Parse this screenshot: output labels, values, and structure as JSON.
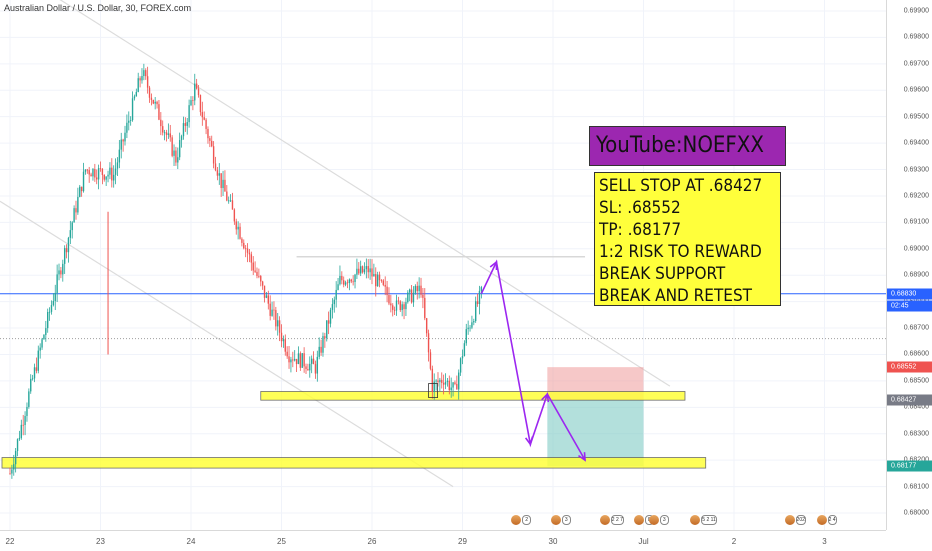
{
  "header": {
    "title": "Australian Dollar / U.S. Dollar, 30, FOREX.com"
  },
  "price_axis": {
    "labels": [
      "0.69900",
      "0.69800",
      "0.69700",
      "0.69600",
      "0.69500",
      "0.69400",
      "0.69300",
      "0.69200",
      "0.69100",
      "0.69000",
      "0.68900",
      "0.68800",
      "0.68700",
      "0.68600",
      "0.68500",
      "0.68400",
      "0.68300",
      "0.68200",
      "0.68100",
      "0.68000"
    ],
    "tags": [
      {
        "text": "0.68830",
        "sub": "02:45",
        "color": "#2962ff",
        "price": 0.6883
      },
      {
        "text": "0.68552",
        "color": "#ef5350",
        "price": 0.68552
      },
      {
        "text": "0.68427",
        "color": "#787b86",
        "price": 0.68427
      },
      {
        "text": "0.68177",
        "color": "#26a69a",
        "price": 0.68177
      }
    ]
  },
  "time_axis": {
    "labels": [
      {
        "text": "22",
        "t": 0
      },
      {
        "text": "23",
        "t": 48
      },
      {
        "text": "24",
        "t": 96
      },
      {
        "text": "25",
        "t": 144
      },
      {
        "text": "26",
        "t": 192
      },
      {
        "text": "29",
        "t": 240
      },
      {
        "text": "30",
        "t": 288
      },
      {
        "text": "Jul",
        "t": 336
      },
      {
        "text": "2",
        "t": 384
      },
      {
        "text": "3",
        "t": 432
      }
    ]
  },
  "annotations": {
    "youtube": "YouTube:NOEFXX",
    "signal_lines": [
      "SELL STOP AT .68427",
      "SL: .68552",
      "TP: .68177",
      "1:2 RISK TO REWARD",
      "BREAK SUPPORT",
      "BREAK AND RETEST"
    ]
  },
  "events": [
    {
      "t": 269,
      "count": "2"
    },
    {
      "t": 290,
      "count": "3"
    },
    {
      "t": 316,
      "count": "2 2 7"
    },
    {
      "t": 334,
      "count": "8"
    },
    {
      "t": 342,
      "count": "3"
    },
    {
      "t": 364,
      "count": "5 2 11"
    },
    {
      "t": 414,
      "count": "202"
    },
    {
      "t": 431,
      "count": "2 4"
    }
  ],
  "colors": {
    "up": "#26a69a",
    "down": "#ef5350",
    "zone": "#ffff3b",
    "arrow": "#9c27f0",
    "purple_box": "#9c27b0"
  },
  "chart_data": {
    "type": "candlestick",
    "timeframe": "30",
    "ylim": [
      0.6795,
      0.6995
    ],
    "last_price": 0.6883,
    "key_points": [
      {
        "t": 0,
        "price": 0.6815
      },
      {
        "t": 10,
        "price": 0.6845
      },
      {
        "t": 40,
        "price": 0.693
      },
      {
        "t": 55,
        "price": 0.6928
      },
      {
        "t": 70,
        "price": 0.6967
      },
      {
        "t": 88,
        "price": 0.6934
      },
      {
        "t": 98,
        "price": 0.6961
      },
      {
        "t": 112,
        "price": 0.6925
      },
      {
        "t": 128,
        "price": 0.6895
      },
      {
        "t": 148,
        "price": 0.686
      },
      {
        "t": 162,
        "price": 0.6855
      },
      {
        "t": 175,
        "price": 0.6888
      },
      {
        "t": 190,
        "price": 0.6892
      },
      {
        "t": 205,
        "price": 0.6878
      },
      {
        "t": 218,
        "price": 0.6885
      },
      {
        "t": 224,
        "price": 0.6848
      },
      {
        "t": 230,
        "price": 0.6851
      },
      {
        "t": 236,
        "price": 0.6846
      },
      {
        "t": 242,
        "price": 0.6868
      },
      {
        "t": 250,
        "price": 0.6883
      }
    ],
    "levels": {
      "sell_stop": 0.68427,
      "stop_loss": 0.68552,
      "take_profit": 0.68177,
      "resistance": 0.6897,
      "support_zone": [
        0.68427,
        0.6846
      ],
      "lower_zone": [
        0.6817,
        0.6821
      ],
      "gray_dotted": 0.6866
    },
    "projection": [
      {
        "t": 250,
        "price": 0.6883
      },
      {
        "t": 258,
        "price": 0.6895
      },
      {
        "t": 276,
        "price": 0.6826
      },
      {
        "t": 285,
        "price": 0.6845
      },
      {
        "t": 305,
        "price": 0.682
      }
    ]
  }
}
